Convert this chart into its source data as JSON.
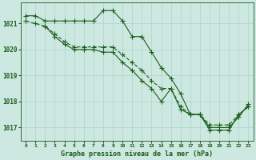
{
  "title": "Graphe pression niveau de la mer (hPa)",
  "background_color": "#cce8e0",
  "grid_color": "#aad4cc",
  "line_color": "#1a5c1a",
  "xlim": [
    -0.5,
    23.5
  ],
  "ylim": [
    1016.5,
    1021.8
  ],
  "yticks": [
    1017,
    1018,
    1019,
    1020,
    1021
  ],
  "xticks": [
    0,
    1,
    2,
    3,
    4,
    5,
    6,
    7,
    8,
    9,
    10,
    11,
    12,
    13,
    14,
    15,
    16,
    17,
    18,
    19,
    20,
    21,
    22,
    23
  ],
  "series1_x": [
    0,
    1,
    2,
    3,
    4,
    5,
    6,
    7,
    8,
    9,
    10,
    11,
    12,
    13,
    14,
    15,
    16,
    17,
    18,
    19,
    20,
    21,
    22,
    23
  ],
  "series1_y": [
    1021.3,
    1021.3,
    1021.1,
    1021.1,
    1021.1,
    1021.1,
    1021.1,
    1021.1,
    1021.5,
    1021.5,
    1021.1,
    1020.5,
    1020.5,
    1019.9,
    1019.3,
    1018.9,
    1018.3,
    1017.5,
    1017.5,
    1016.9,
    1016.9,
    1016.9,
    1017.5,
    1017.8
  ],
  "series2_x": [
    0,
    1,
    2,
    3,
    4,
    5,
    6,
    7,
    8,
    9,
    10,
    11,
    12,
    13,
    14,
    15,
    16,
    17,
    18,
    19,
    20,
    21,
    22,
    23
  ],
  "series2_y": [
    1021.1,
    1021.0,
    1020.9,
    1020.6,
    1020.3,
    1020.1,
    1020.1,
    1020.1,
    1020.1,
    1020.1,
    1019.8,
    1019.5,
    1019.2,
    1018.8,
    1018.5,
    1018.5,
    1017.8,
    1017.5,
    1017.5,
    1017.1,
    1017.1,
    1017.1,
    1017.5,
    1017.8
  ],
  "series3_x": [
    2,
    3,
    4,
    5,
    6,
    7,
    8,
    9,
    10,
    11,
    12,
    13,
    14,
    15,
    16,
    17,
    18,
    19,
    20,
    21,
    22,
    23
  ],
  "series3_y": [
    1020.9,
    1020.5,
    1020.2,
    1020.0,
    1020.0,
    1020.0,
    1019.9,
    1019.9,
    1019.5,
    1019.2,
    1018.8,
    1018.5,
    1018.0,
    1018.5,
    1017.7,
    1017.5,
    1017.5,
    1017.0,
    1017.0,
    1017.0,
    1017.4,
    1017.9
  ]
}
